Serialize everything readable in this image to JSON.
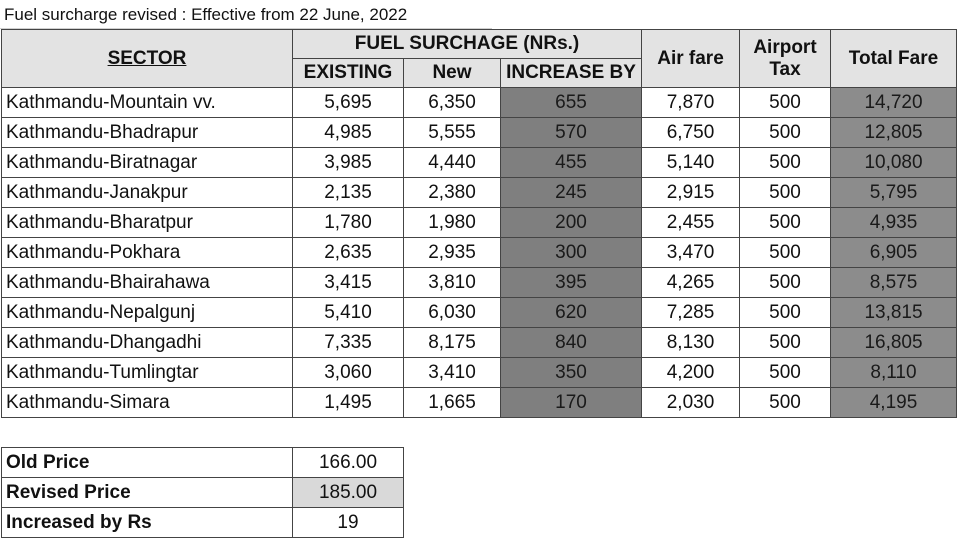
{
  "caption": "Fuel surcharge revised : Effective from 22 June, 2022",
  "headers": {
    "sector": "SECTOR",
    "fuel_surcharge": "FUEL SURCHAGE (NRs.)",
    "existing": "EXISTING",
    "new": "New",
    "increase_by": "INCREASE BY",
    "air_fare": "Air fare",
    "airport_tax_line1": "Airport",
    "airport_tax_line2": "Tax",
    "total_fare": "Total Fare"
  },
  "rows": [
    {
      "sector": "Kathmandu-Mountain vv.",
      "existing": "5,695",
      "new": "6,350",
      "increase": "655",
      "air_fare": "7,870",
      "tax": "500",
      "total": "14,720"
    },
    {
      "sector": "Kathmandu-Bhadrapur",
      "existing": "4,985",
      "new": "5,555",
      "increase": "570",
      "air_fare": "6,750",
      "tax": "500",
      "total": "12,805"
    },
    {
      "sector": "Kathmandu-Biratnagar",
      "existing": "3,985",
      "new": "4,440",
      "increase": "455",
      "air_fare": "5,140",
      "tax": "500",
      "total": "10,080"
    },
    {
      "sector": "Kathmandu-Janakpur",
      "existing": "2,135",
      "new": "2,380",
      "increase": "245",
      "air_fare": "2,915",
      "tax": "500",
      "total": "5,795"
    },
    {
      "sector": "Kathmandu-Bharatpur",
      "existing": "1,780",
      "new": "1,980",
      "increase": "200",
      "air_fare": "2,455",
      "tax": "500",
      "total": "4,935"
    },
    {
      "sector": "Kathmandu-Pokhara",
      "existing": "2,635",
      "new": "2,935",
      "increase": "300",
      "air_fare": "3,470",
      "tax": "500",
      "total": "6,905"
    },
    {
      "sector": "Kathmandu-Bhairahawa",
      "existing": "3,415",
      "new": "3,810",
      "increase": "395",
      "air_fare": "4,265",
      "tax": "500",
      "total": "8,575"
    },
    {
      "sector": "Kathmandu-Nepalgunj",
      "existing": "5,410",
      "new": "6,030",
      "increase": "620",
      "air_fare": "7,285",
      "tax": "500",
      "total": "13,815"
    },
    {
      "sector": "Kathmandu-Dhangadhi",
      "existing": "7,335",
      "new": "8,175",
      "increase": "840",
      "air_fare": "8,130",
      "tax": "500",
      "total": "16,805"
    },
    {
      "sector": "Kathmandu-Tumlingtar",
      "existing": "3,060",
      "new": "3,410",
      "increase": "350",
      "air_fare": "4,200",
      "tax": "500",
      "total": "8,110"
    },
    {
      "sector": "Kathmandu-Simara",
      "existing": "1,495",
      "new": "1,665",
      "increase": "170",
      "air_fare": "2,030",
      "tax": "500",
      "total": "4,195"
    }
  ],
  "summary": [
    {
      "label": "Old Price",
      "value": "166.00",
      "highlight": false
    },
    {
      "label": "Revised Price",
      "value": "185.00",
      "highlight": true
    },
    {
      "label": "Increased by Rs",
      "value": "19",
      "highlight": false
    }
  ],
  "colors": {
    "header_bg": "#e3e3e3",
    "increase_bg": "#7f7f7f",
    "total_bg": "#8c8c8c",
    "revised_bg": "#d9d9d9"
  }
}
